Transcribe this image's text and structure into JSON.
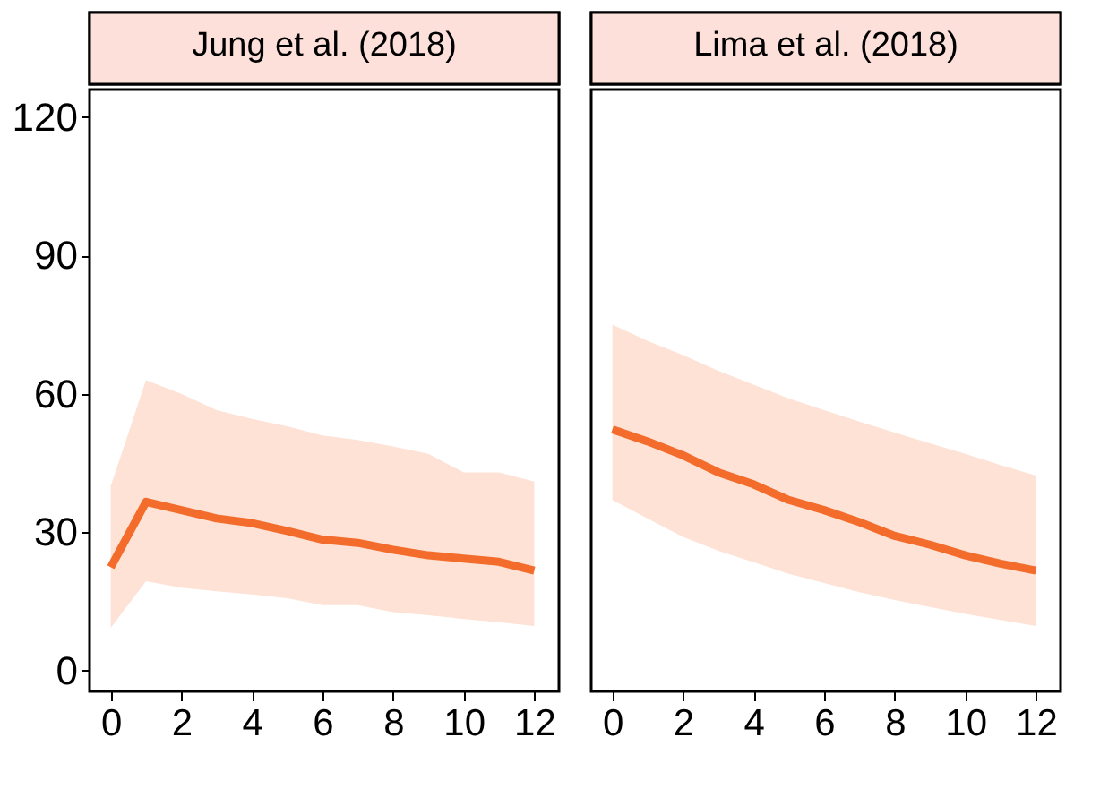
{
  "chart_data": [
    {
      "type": "line",
      "title": "Jung et al. (2018)",
      "x": [
        0,
        1,
        2,
        3,
        4,
        5,
        6,
        7,
        8,
        9,
        10,
        11,
        12
      ],
      "xlim": [
        -0.6,
        12.7
      ],
      "xticks": [
        0,
        2,
        4,
        6,
        8,
        10,
        12
      ],
      "ylim": [
        -4.5,
        126
      ],
      "yticks": [
        0,
        30,
        60,
        90,
        120
      ],
      "grid": false,
      "series": [
        {
          "color": "#f36c2c",
          "values": [
            22.4,
            36.6,
            34.8,
            33,
            32,
            30.3,
            28.4,
            27.7,
            26.2,
            25,
            24.3,
            23.6,
            21.7
          ],
          "lower": [
            9.3,
            19.4,
            18,
            17.2,
            16.5,
            15.7,
            14.2,
            14.2,
            12.7,
            12,
            11.2,
            10.5,
            9.7
          ],
          "upper": [
            40,
            63,
            60,
            56.5,
            54.6,
            53,
            51,
            50,
            48.6,
            47,
            43,
            43,
            41
          ]
        }
      ]
    },
    {
      "type": "line",
      "title": "Lima et al. (2018)",
      "x": [
        0,
        1,
        2,
        3,
        4,
        5,
        6,
        7,
        8,
        9,
        10,
        11,
        12
      ],
      "xlim": [
        -0.6,
        12.7
      ],
      "xticks": [
        0,
        2,
        4,
        6,
        8,
        10,
        12
      ],
      "ylim": [
        -4.5,
        126
      ],
      "yticks": [
        0,
        30,
        60,
        90,
        120
      ],
      "grid": false,
      "tick_labels": "x",
      "series": [
        {
          "color": "#f36c2c",
          "values": [
            52.3,
            49.7,
            46.7,
            43,
            40.4,
            37,
            34.8,
            32.2,
            29.2,
            27.3,
            25,
            23.2,
            21.7
          ],
          "lower": [
            37,
            33,
            29,
            26,
            23.5,
            21,
            19,
            17,
            15.3,
            13.8,
            12.3,
            11,
            9.7
          ],
          "upper": [
            75,
            71.5,
            68.4,
            65,
            62,
            59,
            56.5,
            54,
            51.6,
            49.3,
            47,
            44.6,
            42.3
          ]
        }
      ]
    }
  ]
}
